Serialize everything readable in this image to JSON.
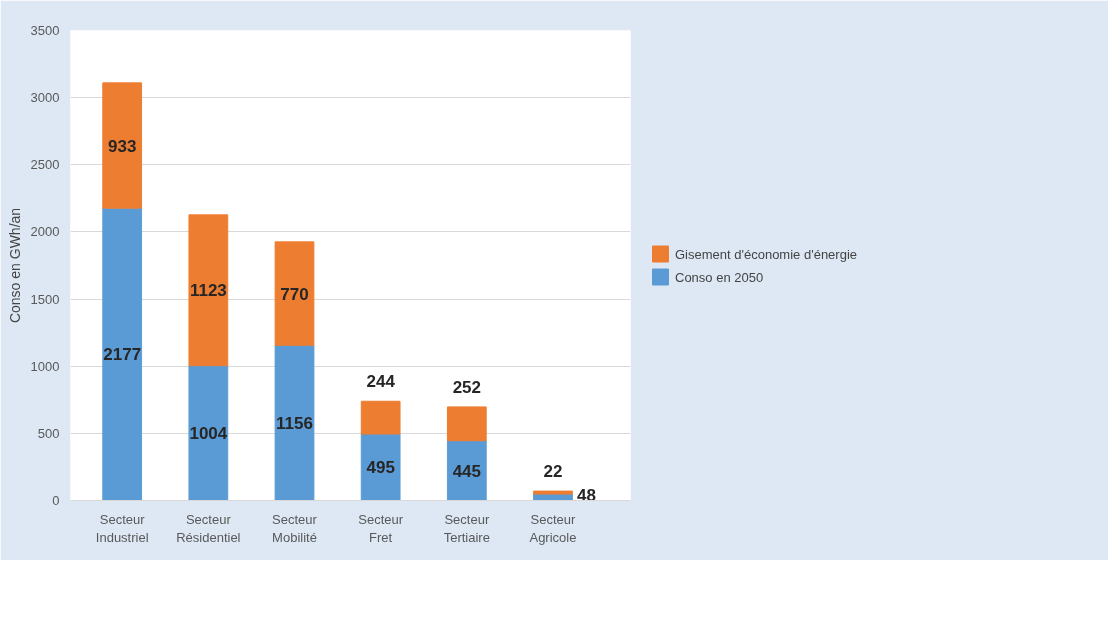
{
  "chart_data": {
    "type": "bar",
    "stacked": true,
    "ylabel": "Conso en GWh/an",
    "categories": [
      "Secteur Industriel",
      "Secteur Résidentiel",
      "Secteur Mobilité",
      "Secteur Fret",
      "Secteur Tertiaire",
      "Secteur Agricole"
    ],
    "series": [
      {
        "name": "Conso en 2050",
        "color": "#5b9bd5",
        "values": [
          2177,
          1004,
          1156,
          495,
          445,
          48
        ]
      },
      {
        "name": "Gisement d'économie d'énergie",
        "color": "#ed7d31",
        "values": [
          933,
          1123,
          770,
          244,
          252,
          22
        ]
      }
    ],
    "ylim": [
      0,
      3500
    ],
    "yticks": [
      0,
      500,
      1000,
      1500,
      2000,
      2500,
      3000,
      3500
    ],
    "grid": "y",
    "legend": "right",
    "data_labels": true
  }
}
